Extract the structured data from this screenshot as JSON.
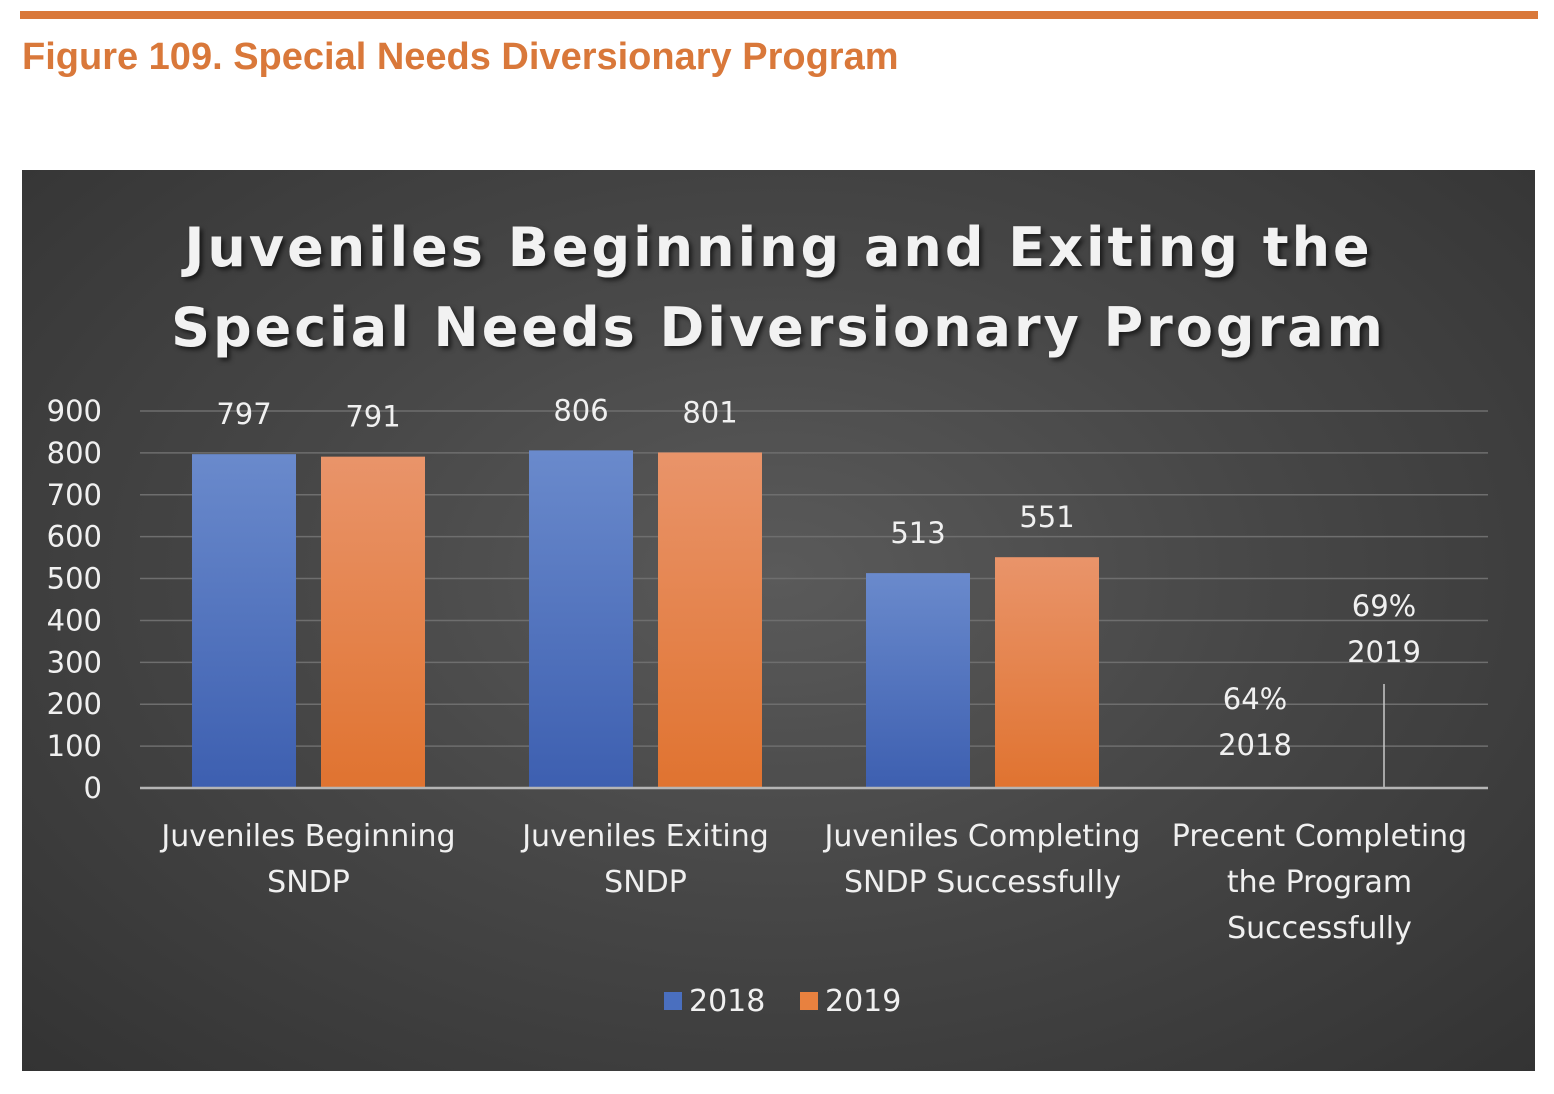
{
  "figure_caption": "Figure 109. Special Needs Diversionary Program",
  "chart_data": {
    "type": "bar",
    "title": [
      "Juveniles Beginning and Exiting the",
      "Special Needs Diversionary Program"
    ],
    "categories": [
      [
        "Juveniles Beginning",
        "SNDP"
      ],
      [
        "Juveniles Exiting",
        "SNDP"
      ],
      [
        "Juveniles Completing",
        "SNDP Successfully"
      ],
      [
        "Precent Completing",
        "the Program",
        "Successfully"
      ]
    ],
    "series": [
      {
        "name": "2018",
        "values": [
          797,
          806,
          513,
          0.64
        ],
        "labels": [
          "797",
          "806",
          "513",
          "64%\n2018"
        ],
        "color": "#4a6fbf"
      },
      {
        "name": "2019",
        "values": [
          791,
          801,
          551,
          0.69
        ],
        "labels": [
          "791",
          "801",
          "551",
          "69%\n2019"
        ],
        "color": "#e8813f"
      }
    ],
    "ylim": [
      0,
      900
    ],
    "yticks": [
      0,
      100,
      200,
      300,
      400,
      500,
      600,
      700,
      800,
      900
    ],
    "grid": true,
    "legend": "bottom",
    "xlabel": "",
    "ylabel": ""
  }
}
